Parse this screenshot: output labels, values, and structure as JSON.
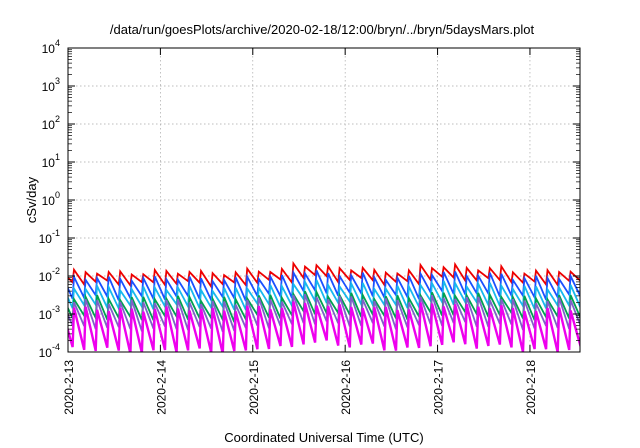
{
  "chart_data": {
    "type": "line",
    "title": "/data/run/goesPlots/archive/2020-02-18/12:00/bryn/../bryn/5daysMars.plot",
    "xlabel": "Coordinated Universal Time (UTC)",
    "ylabel": "cSv/day",
    "scale_y": "log",
    "ylim": [
      0.0001,
      10000
    ],
    "xlim": [
      "2020-02-13T00:00",
      "2020-02-18T13:00"
    ],
    "x_ticks": [
      "2020-2-13",
      "2020-2-14",
      "2020-2-15",
      "2020-2-16",
      "2020-2-17",
      "2020-2-18"
    ],
    "y_ticks": [
      {
        "base": "10",
        "exp": "-4"
      },
      {
        "base": "10",
        "exp": "-3"
      },
      {
        "base": "10",
        "exp": "-2"
      },
      {
        "base": "10",
        "exp": "-1"
      },
      {
        "base": "10",
        "exp": "0"
      },
      {
        "base": "10",
        "exp": "1"
      },
      {
        "base": "10",
        "exp": "2"
      },
      {
        "base": "10",
        "exp": "3"
      },
      {
        "base": "10",
        "exp": "4"
      }
    ],
    "grid": true,
    "pattern": "sawtooth, one cycle about every 3 hours",
    "series": [
      {
        "color": "#ee0000",
        "values": [
          0.013,
          0.0068,
          0.012,
          0.0063,
          0.013,
          0.0065,
          0.012,
          0.006,
          0.014,
          0.0074,
          0.02,
          0.0095,
          0.016,
          0.0079,
          0.013,
          0.0066,
          0.018,
          0.0086,
          0.016,
          0.0078,
          0.013,
          0.0064,
          0.014,
          0.0068
        ]
      },
      {
        "color": "#1a50ff",
        "values": [
          0.009,
          0.0028,
          0.0085,
          0.0026,
          0.0088,
          0.0027,
          0.0082,
          0.0025,
          0.0095,
          0.003,
          0.013,
          0.0038,
          0.011,
          0.0033,
          0.009,
          0.0028,
          0.012,
          0.0036,
          0.011,
          0.0032,
          0.009,
          0.0027,
          0.0095,
          0.0029
        ]
      },
      {
        "color": "#18b8ee",
        "values": [
          0.005,
          0.0016,
          0.0047,
          0.0015,
          0.0049,
          0.0016,
          0.0045,
          0.0014,
          0.0052,
          0.0017,
          0.007,
          0.0022,
          0.006,
          0.0019,
          0.005,
          0.0016,
          0.0066,
          0.002,
          0.006,
          0.0018,
          0.005,
          0.0015,
          0.0052,
          0.0016
        ]
      },
      {
        "color": "#00a050",
        "values": [
          0.0028,
          0.0008,
          0.0026,
          0.00075,
          0.0027,
          0.0008,
          0.0025,
          0.0007,
          0.0029,
          0.00085,
          0.0036,
          0.0011,
          0.0032,
          0.00095,
          0.0028,
          0.0008,
          0.0034,
          0.001,
          0.0032,
          0.00095,
          0.0027,
          0.00078,
          0.0029,
          0.00083
        ]
      },
      {
        "color": "#8060c8",
        "values": [
          0.0022,
          0.00045,
          0.0021,
          0.0004,
          0.0022,
          0.00042,
          0.002,
          0.00038,
          0.0024,
          0.00048,
          0.003,
          0.0006,
          0.0027,
          0.00052,
          0.0023,
          0.00045,
          0.0028,
          0.00055,
          0.0026,
          0.0005,
          0.0022,
          0.00043,
          0.0024,
          0.00046
        ]
      },
      {
        "color": "#ee00ee",
        "values": [
          0.0014,
          0.00012,
          0.0013,
          0.0001,
          0.0014,
          0.00011,
          0.0013,
          0.0001,
          0.0015,
          0.00013,
          0.0019,
          0.00018,
          0.0016,
          0.00015,
          0.0014,
          0.00012,
          0.0018,
          0.00016,
          0.0016,
          0.00014,
          0.0013,
          0.00011,
          0.0014,
          0.00012
        ]
      }
    ]
  }
}
